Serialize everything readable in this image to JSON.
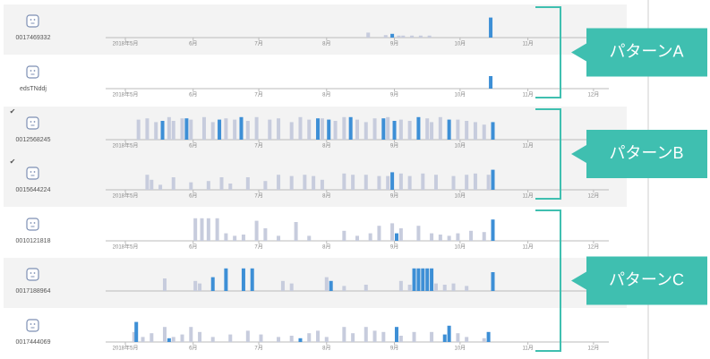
{
  "chart_data": [
    {
      "type": "bar",
      "title": "0017469332",
      "xlim": [
        -9,
        221
      ],
      "ylim": [
        0,
        100
      ],
      "xticks": [
        {
          "value": 0,
          "label": "2018年5月"
        },
        {
          "value": 31,
          "label": "6月"
        },
        {
          "value": 61,
          "label": "7月"
        },
        {
          "value": 92,
          "label": "8月"
        },
        {
          "value": 123,
          "label": "9月"
        },
        {
          "value": 153,
          "label": "10月"
        },
        {
          "value": 184,
          "label": "11月"
        }
      ],
      "series": [
        {
          "color": "#c7ccdd",
          "x": [
            111,
            119,
            125,
            127,
            131,
            135,
            139
          ],
          "values": [
            20,
            10,
            8,
            8,
            8,
            8,
            8
          ]
        },
        {
          "color": "#3d8fd6",
          "x": [
            122,
            167
          ],
          "values": [
            15,
            80
          ]
        }
      ]
    },
    {
      "type": "bar",
      "title": "edsTNddj",
      "xlim": [
        -9,
        221
      ],
      "ylim": [
        0,
        100
      ],
      "xticks": [
        {
          "value": 0,
          "label": "2018年5月"
        },
        {
          "value": 31,
          "label": "6月"
        },
        {
          "value": 61,
          "label": "7月"
        },
        {
          "value": 92,
          "label": "8月"
        },
        {
          "value": 123,
          "label": "9月"
        },
        {
          "value": 153,
          "label": "10月"
        },
        {
          "value": 184,
          "label": "11月"
        },
        {
          "value": 214,
          "label": "12月"
        }
      ],
      "series": [
        {
          "color": "#3d8fd6",
          "x": [
            167
          ],
          "values": [
            50
          ]
        }
      ]
    },
    {
      "type": "bar",
      "title": "0012568245",
      "check": "✔",
      "xlim": [
        -9,
        221
      ],
      "ylim": [
        0,
        100
      ],
      "xticks": [
        {
          "value": 0,
          "label": "2018年5月"
        },
        {
          "value": 31,
          "label": "6月"
        },
        {
          "value": 61,
          "label": "7月"
        },
        {
          "value": 92,
          "label": "8月"
        },
        {
          "value": 123,
          "label": "9月"
        },
        {
          "value": 153,
          "label": "10月"
        },
        {
          "value": 184,
          "label": "11月"
        },
        {
          "value": 214,
          "label": "12月"
        }
      ],
      "series": [
        {
          "color": "#c7ccdd",
          "x": [
            6,
            10,
            14,
            20,
            22,
            26,
            30,
            36,
            40,
            46,
            50,
            56,
            60,
            66,
            70,
            76,
            80,
            84,
            90,
            96,
            100,
            106,
            110,
            114,
            120,
            126,
            130,
            138,
            140,
            144,
            152,
            156,
            160,
            164
          ],
          "values": [
            80,
            85,
            70,
            90,
            75,
            85,
            80,
            90,
            70,
            85,
            80,
            75,
            90,
            80,
            85,
            70,
            90,
            80,
            85,
            75,
            90,
            80,
            70,
            85,
            90,
            80,
            75,
            85,
            70,
            90,
            80,
            75,
            70,
            60
          ]
        },
        {
          "color": "#3d8fd6",
          "x": [
            17,
            28,
            43,
            53,
            88,
            93,
            103,
            118,
            123,
            134,
            148,
            168
          ],
          "values": [
            75,
            85,
            80,
            90,
            85,
            80,
            90,
            85,
            75,
            90,
            80,
            70
          ]
        }
      ]
    },
    {
      "type": "bar",
      "title": "0015644224",
      "check": "✔",
      "xlim": [
        -9,
        221
      ],
      "ylim": [
        0,
        100
      ],
      "xticks": [
        {
          "value": 0,
          "label": "2018年5月"
        },
        {
          "value": 31,
          "label": "6月"
        },
        {
          "value": 61,
          "label": "7月"
        },
        {
          "value": 92,
          "label": "8月"
        },
        {
          "value": 123,
          "label": "9月"
        },
        {
          "value": 153,
          "label": "10月"
        },
        {
          "value": 184,
          "label": "11月"
        },
        {
          "value": 214,
          "label": "12月"
        }
      ],
      "series": [
        {
          "color": "#c7ccdd",
          "x": [
            10,
            12,
            16,
            22,
            30,
            38,
            44,
            48,
            56,
            64,
            70,
            76,
            82,
            86,
            90,
            100,
            104,
            110,
            116,
            120,
            126,
            130,
            136,
            142,
            150,
            156,
            160,
            166
          ],
          "values": [
            60,
            40,
            20,
            50,
            30,
            35,
            50,
            25,
            50,
            35,
            60,
            55,
            60,
            55,
            40,
            65,
            60,
            60,
            55,
            55,
            65,
            55,
            65,
            60,
            55,
            60,
            65,
            60
          ]
        },
        {
          "color": "#3d8fd6",
          "x": [
            122,
            168
          ],
          "values": [
            70,
            80
          ]
        }
      ]
    },
    {
      "type": "bar",
      "title": "0010121818",
      "xlim": [
        -9,
        221
      ],
      "ylim": [
        0,
        100
      ],
      "xticks": [
        {
          "value": 0,
          "label": "2018年5月"
        },
        {
          "value": 31,
          "label": "6月"
        },
        {
          "value": 61,
          "label": "7月"
        },
        {
          "value": 92,
          "label": "8月"
        },
        {
          "value": 123,
          "label": "9月"
        },
        {
          "value": 153,
          "label": "10月"
        },
        {
          "value": 184,
          "label": "11月"
        },
        {
          "value": 214,
          "label": "12月"
        }
      ],
      "series": [
        {
          "color": "#c7ccdd",
          "x": [
            32,
            35,
            38,
            42,
            46,
            50,
            54,
            60,
            64,
            70,
            78,
            84,
            100,
            106,
            112,
            116,
            122,
            126,
            134,
            140,
            144,
            148,
            152,
            158,
            164
          ],
          "values": [
            90,
            90,
            90,
            90,
            30,
            20,
            25,
            80,
            50,
            20,
            75,
            20,
            40,
            20,
            30,
            60,
            70,
            50,
            60,
            30,
            25,
            20,
            30,
            40,
            35
          ]
        },
        {
          "color": "#3d8fd6",
          "x": [
            124,
            168
          ],
          "values": [
            30,
            85
          ]
        }
      ]
    },
    {
      "type": "bar",
      "title": "0017188964",
      "xlim": [
        -9,
        221
      ],
      "ylim": [
        0,
        100
      ],
      "xticks": [],
      "series": [
        {
          "color": "#c7ccdd",
          "x": [
            18,
            32,
            34,
            72,
            76,
            92,
            100,
            110,
            126,
            130,
            142,
            146,
            150,
            156
          ],
          "values": [
            50,
            40,
            30,
            40,
            30,
            55,
            20,
            25,
            40,
            25,
            30,
            25,
            30,
            20
          ]
        },
        {
          "color": "#3d8fd6",
          "x": [
            40,
            46,
            54,
            58,
            94,
            132,
            134,
            136,
            138,
            140,
            168
          ],
          "values": [
            55,
            90,
            90,
            90,
            40,
            90,
            90,
            90,
            90,
            90,
            75
          ]
        }
      ]
    },
    {
      "type": "bar",
      "title": "0017444069",
      "xlim": [
        -9,
        221
      ],
      "ylim": [
        0,
        100
      ],
      "xticks": [
        {
          "value": 0,
          "label": "2018年5月"
        },
        {
          "value": 31,
          "label": "6月"
        },
        {
          "value": 61,
          "label": "7月"
        },
        {
          "value": 92,
          "label": "8月"
        },
        {
          "value": 123,
          "label": "9月"
        },
        {
          "value": 153,
          "label": "10月"
        },
        {
          "value": 184,
          "label": "11月"
        },
        {
          "value": 214,
          "label": "12月"
        }
      ],
      "series": [
        {
          "color": "#c7ccdd",
          "x": [
            4,
            8,
            12,
            18,
            22,
            26,
            30,
            34,
            40,
            48,
            56,
            62,
            70,
            76,
            84,
            88,
            92,
            100,
            104,
            110,
            114,
            118,
            126,
            132,
            140,
            152,
            156,
            164
          ],
          "values": [
            40,
            20,
            35,
            60,
            20,
            30,
            60,
            40,
            20,
            30,
            45,
            30,
            20,
            25,
            35,
            45,
            20,
            60,
            35,
            60,
            45,
            40,
            25,
            40,
            40,
            35,
            20,
            15
          ]
        },
        {
          "color": "#3d8fd6",
          "x": [
            5,
            20,
            80,
            124,
            146,
            148,
            166
          ],
          "values": [
            80,
            15,
            15,
            60,
            30,
            65,
            40
          ]
        }
      ]
    }
  ],
  "groups": [
    {
      "label": "パターンA",
      "rows": [
        0,
        1
      ]
    },
    {
      "label": "パターンB",
      "rows": [
        2,
        3
      ]
    },
    {
      "label": "パターンC",
      "rows": [
        4,
        6
      ]
    }
  ]
}
